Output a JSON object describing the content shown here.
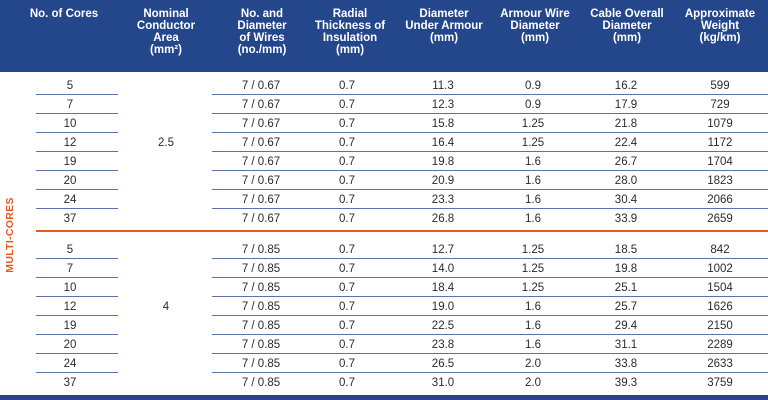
{
  "header": {
    "columns": [
      "No. of Cores",
      "Nominal\nConductor\nArea\n(mm²)",
      "No. and\nDiameter\nof Wires\n(no./mm)",
      "Radial\nThickness of\nInsulation\n(mm)",
      "Diameter\nUnder Armour\n(mm)",
      "Armour Wire\nDiameter\n(mm)",
      "Cable Overall\nDiameter\n(mm)",
      "Approximate\nWeight\n(kg/km)"
    ]
  },
  "side_label": "MULTI-CORES",
  "groups": [
    {
      "area": "2.5",
      "rows": [
        {
          "cores": "5",
          "wires": "7 / 0.67",
          "insulation": "0.7",
          "under_armour": "11.3",
          "armour_wire": "0.9",
          "overall": "16.2",
          "weight": "599"
        },
        {
          "cores": "7",
          "wires": "7 / 0.67",
          "insulation": "0.7",
          "under_armour": "12.3",
          "armour_wire": "0.9",
          "overall": "17.9",
          "weight": "729"
        },
        {
          "cores": "10",
          "wires": "7 / 0.67",
          "insulation": "0.7",
          "under_armour": "15.8",
          "armour_wire": "1.25",
          "overall": "21.8",
          "weight": "1079"
        },
        {
          "cores": "12",
          "wires": "7 / 0.67",
          "insulation": "0.7",
          "under_armour": "16.4",
          "armour_wire": "1.25",
          "overall": "22.4",
          "weight": "1172"
        },
        {
          "cores": "19",
          "wires": "7 / 0.67",
          "insulation": "0.7",
          "under_armour": "19.8",
          "armour_wire": "1.6",
          "overall": "26.7",
          "weight": "1704"
        },
        {
          "cores": "20",
          "wires": "7 / 0.67",
          "insulation": "0.7",
          "under_armour": "20.9",
          "armour_wire": "1.6",
          "overall": "28.0",
          "weight": "1823"
        },
        {
          "cores": "24",
          "wires": "7 / 0.67",
          "insulation": "0.7",
          "under_armour": "23.3",
          "armour_wire": "1.6",
          "overall": "30.4",
          "weight": "2066"
        },
        {
          "cores": "37",
          "wires": "7 / 0.67",
          "insulation": "0.7",
          "under_armour": "26.8",
          "armour_wire": "1.6",
          "overall": "33.9",
          "weight": "2659"
        }
      ]
    },
    {
      "area": "4",
      "rows": [
        {
          "cores": "5",
          "wires": "7 / 0.85",
          "insulation": "0.7",
          "under_armour": "12.7",
          "armour_wire": "1.25",
          "overall": "18.5",
          "weight": "842"
        },
        {
          "cores": "7",
          "wires": "7 / 0.85",
          "insulation": "0.7",
          "under_armour": "14.0",
          "armour_wire": "1.25",
          "overall": "19.8",
          "weight": "1002"
        },
        {
          "cores": "10",
          "wires": "7 / 0.85",
          "insulation": "0.7",
          "under_armour": "18.4",
          "armour_wire": "1.25",
          "overall": "25.1",
          "weight": "1504"
        },
        {
          "cores": "12",
          "wires": "7 / 0.85",
          "insulation": "0.7",
          "under_armour": "19.0",
          "armour_wire": "1.6",
          "overall": "25.7",
          "weight": "1626"
        },
        {
          "cores": "19",
          "wires": "7 / 0.85",
          "insulation": "0.7",
          "under_armour": "22.5",
          "armour_wire": "1.6",
          "overall": "29.4",
          "weight": "2150"
        },
        {
          "cores": "20",
          "wires": "7 / 0.85",
          "insulation": "0.7",
          "under_armour": "23.8",
          "armour_wire": "1.6",
          "overall": "31.1",
          "weight": "2289"
        },
        {
          "cores": "24",
          "wires": "7 / 0.85",
          "insulation": "0.7",
          "under_armour": "26.5",
          "armour_wire": "2.0",
          "overall": "33.8",
          "weight": "2633"
        },
        {
          "cores": "37",
          "wires": "7 / 0.85",
          "insulation": "0.7",
          "under_armour": "31.0",
          "armour_wire": "2.0",
          "overall": "39.3",
          "weight": "3759"
        }
      ]
    }
  ]
}
